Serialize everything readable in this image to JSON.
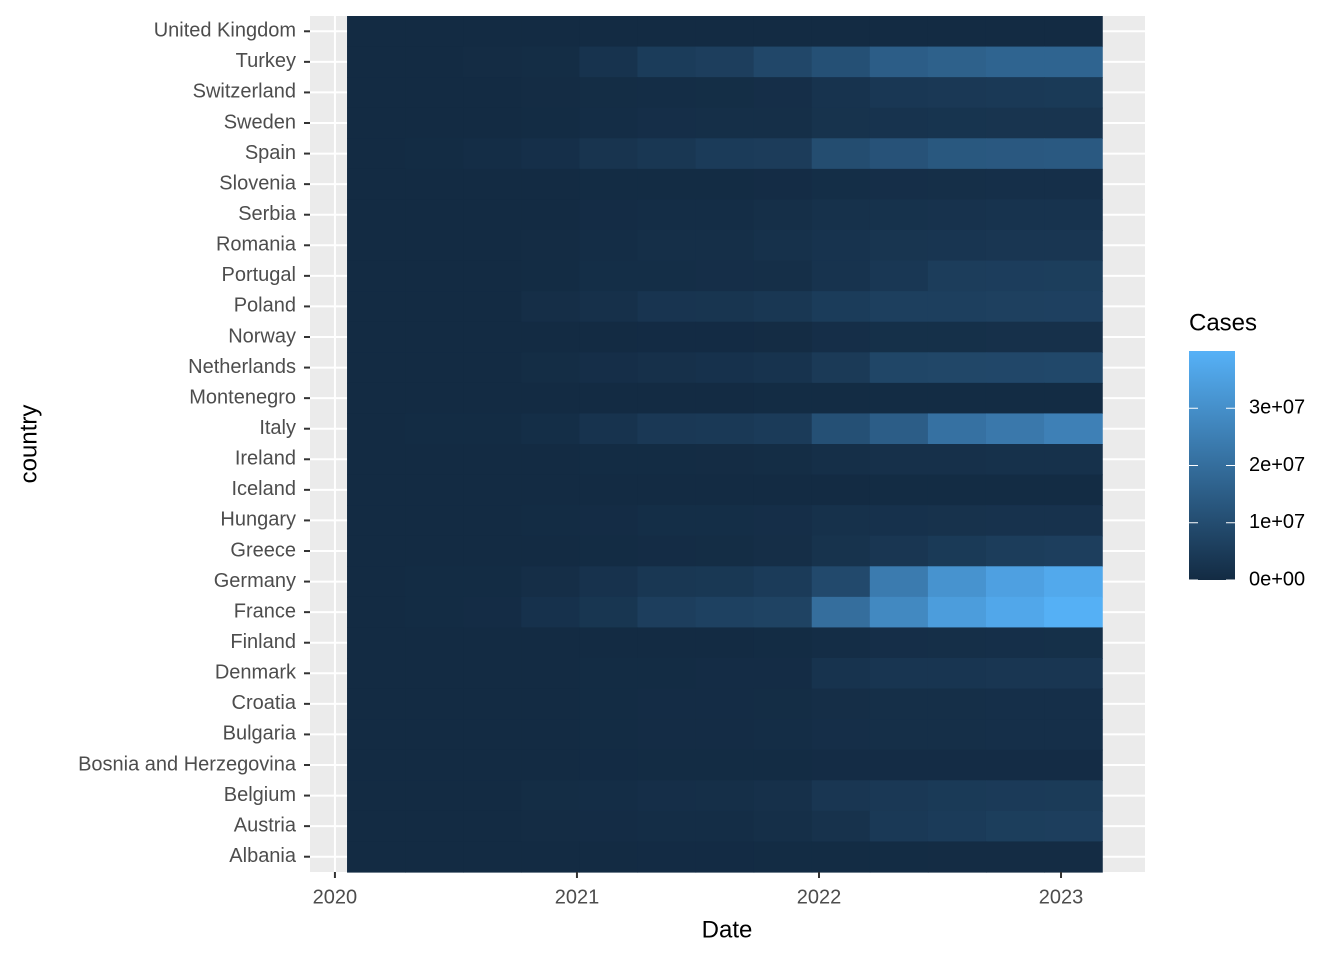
{
  "chart_data": {
    "type": "heatmap",
    "x_label": "Date",
    "y_label": "country",
    "legend_title": "Cases",
    "x": [
      2020.17,
      2020.41,
      2020.65,
      2020.89,
      2021.13,
      2021.37,
      2021.61,
      2021.85,
      2022.09,
      2022.33,
      2022.57,
      2022.81,
      2023.05
    ],
    "xlim": [
      2019.897,
      2023.347
    ],
    "xticks": [
      2020,
      2021,
      2022,
      2023
    ],
    "categories": [
      "United Kingdom",
      "Turkey",
      "Switzerland",
      "Sweden",
      "Spain",
      "Slovenia",
      "Serbia",
      "Romania",
      "Portugal",
      "Poland",
      "Norway",
      "Netherlands",
      "Montenegro",
      "Italy",
      "Ireland",
      "Iceland",
      "Hungary",
      "Greece",
      "Germany",
      "France",
      "Finland",
      "Denmark",
      "Croatia",
      "Bulgaria",
      "Bosnia and Herzegovina",
      "Belgium",
      "Austria",
      "Albania"
    ],
    "values": [
      [
        0,
        0,
        0,
        0,
        0,
        0,
        0,
        0,
        0,
        0,
        0,
        0,
        0
      ],
      [
        0,
        100000,
        300000,
        500000,
        2500000,
        5000000,
        5700000,
        8500000,
        11000000,
        15000000,
        16000000,
        17000000,
        17000000
      ],
      [
        0,
        30000,
        50000,
        300000,
        500000,
        700000,
        750000,
        1000000,
        2500000,
        3700000,
        4000000,
        4300000,
        4400000
      ],
      [
        0,
        60000,
        90000,
        200000,
        600000,
        1000000,
        1100000,
        1200000,
        2300000,
        2500000,
        2600000,
        2700000,
        2700000
      ],
      [
        0,
        250000,
        700000,
        1300000,
        2700000,
        3600000,
        4900000,
        5100000,
        10000000,
        11700000,
        13300000,
        13500000,
        13700000
      ],
      [
        0,
        0,
        0,
        50000,
        180000,
        250000,
        260000,
        400000,
        800000,
        1000000,
        1200000,
        1300000,
        1300000
      ],
      [
        0,
        10000,
        30000,
        50000,
        400000,
        700000,
        720000,
        1200000,
        1800000,
        2000000,
        2200000,
        2400000,
        2500000
      ],
      [
        0,
        20000,
        80000,
        300000,
        700000,
        1070000,
        1080000,
        1800000,
        2500000,
        2900000,
        3100000,
        3300000,
        3300000
      ],
      [
        0,
        30000,
        60000,
        200000,
        800000,
        840000,
        1000000,
        1100000,
        2500000,
        3700000,
        5300000,
        5500000,
        5600000
      ],
      [
        0,
        20000,
        70000,
        900000,
        1500000,
        2800000,
        2900000,
        3500000,
        5000000,
        6000000,
        6100000,
        6300000,
        6400000
      ],
      [
        0,
        10000,
        10000,
        20000,
        60000,
        120000,
        140000,
        300000,
        1000000,
        1400000,
        1400000,
        1500000,
        1500000
      ],
      [
        0,
        50000,
        80000,
        500000,
        1000000,
        1600000,
        1900000,
        2400000,
        4500000,
        8000000,
        8300000,
        8500000,
        8600000
      ],
      [
        0,
        0,
        2000,
        20000,
        50000,
        90000,
        100000,
        150000,
        200000,
        240000,
        270000,
        280000,
        290000
      ],
      [
        0,
        200000,
        270000,
        800000,
        2500000,
        4000000,
        4300000,
        4800000,
        11000000,
        15000000,
        21000000,
        23000000,
        25500000
      ],
      [
        0,
        20000,
        30000,
        60000,
        180000,
        250000,
        300000,
        500000,
        1200000,
        1500000,
        1600000,
        1700000,
        1700000
      ],
      [
        0,
        2000,
        2000,
        5000,
        6000,
        6000,
        10000,
        15000,
        80000,
        180000,
        200000,
        200000,
        210000
      ],
      [
        0,
        3000,
        10000,
        200000,
        400000,
        800000,
        810000,
        1000000,
        1700000,
        1900000,
        2100000,
        2200000,
        2200000
      ],
      [
        0,
        3000,
        20000,
        100000,
        200000,
        400000,
        550000,
        900000,
        2300000,
        3400000,
        4400000,
        5300000,
        5700000
      ],
      [
        0,
        170000,
        260000,
        900000,
        2200000,
        3600000,
        3800000,
        4800000,
        9000000,
        24000000,
        31000000,
        35000000,
        37500000
      ],
      [
        0,
        150000,
        400000,
        1900000,
        3200000,
        5800000,
        6700000,
        7200000,
        20000000,
        28000000,
        34000000,
        37000000,
        39600000
      ],
      [
        0,
        6000,
        9000,
        20000,
        50000,
        90000,
        110000,
        150000,
        600000,
        1000000,
        1200000,
        1300000,
        1400000
      ],
      [
        0,
        10000,
        20000,
        60000,
        200000,
        260000,
        340000,
        400000,
        2500000,
        3000000,
        3100000,
        3300000,
        3400000
      ],
      [
        0,
        2000,
        20000,
        100000,
        240000,
        340000,
        370000,
        550000,
        900000,
        1100000,
        1200000,
        1260000,
        1270000
      ],
      [
        0,
        1000,
        20000,
        80000,
        220000,
        400000,
        430000,
        700000,
        1000000,
        1150000,
        1200000,
        1280000,
        1300000
      ],
      [
        0,
        1000,
        20000,
        60000,
        120000,
        200000,
        200000,
        270000,
        350000,
        380000,
        390000,
        400000,
        400000
      ],
      [
        0,
        50000,
        100000,
        500000,
        700000,
        1000000,
        1100000,
        1600000,
        3300000,
        4000000,
        4400000,
        4600000,
        4700000
      ],
      [
        0,
        16000,
        30000,
        300000,
        420000,
        640000,
        670000,
        1100000,
        2100000,
        4200000,
        4900000,
        5600000,
        5800000
      ],
      [
        0,
        1000,
        10000,
        30000,
        80000,
        130000,
        130000,
        200000,
        260000,
        280000,
        320000,
        330000,
        330000
      ]
    ],
    "clim": [
      0,
      40000000
    ],
    "cticks": [
      {
        "value": 0,
        "label": "0e+00"
      },
      {
        "value": 10000000,
        "label": "1e+07"
      },
      {
        "value": 20000000,
        "label": "2e+07"
      },
      {
        "value": 30000000,
        "label": "3e+07"
      }
    ],
    "colors": [
      "#132B43",
      "#56B1F7"
    ],
    "grid": true
  }
}
